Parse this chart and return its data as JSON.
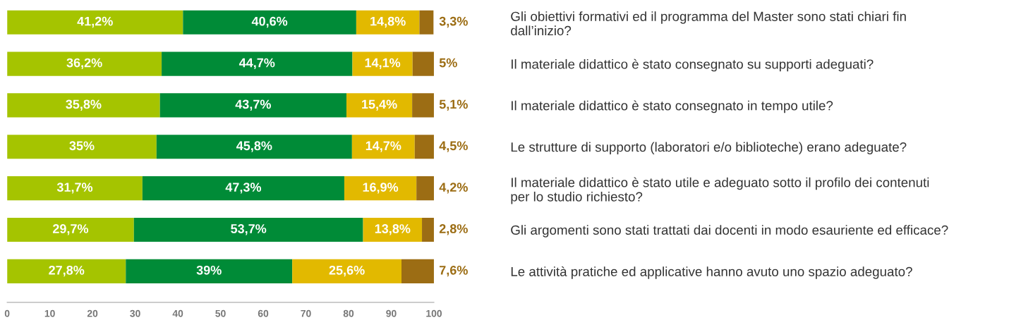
{
  "chart_data": {
    "type": "bar",
    "orientation": "horizontal",
    "stacked": true,
    "categories": [
      "Gli obiettivi formativi ed il programma del Master sono stati chiari fin\ndall’inizio?",
      "Il materiale didattico è stato consegnato su supporti adeguati?",
      "Il materiale didattico è stato consegnato in tempo utile?",
      "Le strutture di supporto (laboratori e/o biblioteche) erano adeguate?",
      "Il materiale didattico è stato utile e adeguato sotto il profilo dei contenuti\nper lo studio richiesto?",
      "Gli argomenti sono stati trattati dai docenti in modo esauriente ed efficace?",
      "Le attività pratiche ed applicative hanno avuto uno spazio adeguato?"
    ],
    "series": [
      {
        "color": "#a5c400",
        "values": [
          41.2,
          36.2,
          35.8,
          35,
          31.7,
          29.7,
          27.8
        ],
        "value_labels": [
          "41,2%",
          "36,2%",
          "35,8%",
          "35%",
          "31,7%",
          "29,7%",
          "27,8%"
        ]
      },
      {
        "color": "#008b37",
        "values": [
          40.6,
          44.7,
          43.7,
          45.8,
          47.3,
          53.7,
          39
        ],
        "value_labels": [
          "40,6%",
          "44,7%",
          "43,7%",
          "45,8%",
          "47,3%",
          "53,7%",
          "39%"
        ]
      },
      {
        "color": "#e2b900",
        "values": [
          14.8,
          14.1,
          15.4,
          14.7,
          16.9,
          13.8,
          25.6
        ],
        "value_labels": [
          "14,8%",
          "14,1%",
          "15,4%",
          "14,7%",
          "16,9%",
          "13,8%",
          "25,6%"
        ]
      },
      {
        "color": "#9c6d14",
        "values": [
          3.3,
          5,
          5.1,
          4.5,
          4.2,
          2.8,
          7.6
        ],
        "value_labels": [
          "3,3%",
          "5%",
          "5,1%",
          "4,5%",
          "4,2%",
          "2,8%",
          "7,6%"
        ]
      }
    ],
    "xlim": [
      0,
      100
    ],
    "xticks": [
      0,
      10,
      20,
      30,
      40,
      50,
      60,
      70,
      80,
      90,
      100
    ],
    "grid": false,
    "legend": false
  }
}
